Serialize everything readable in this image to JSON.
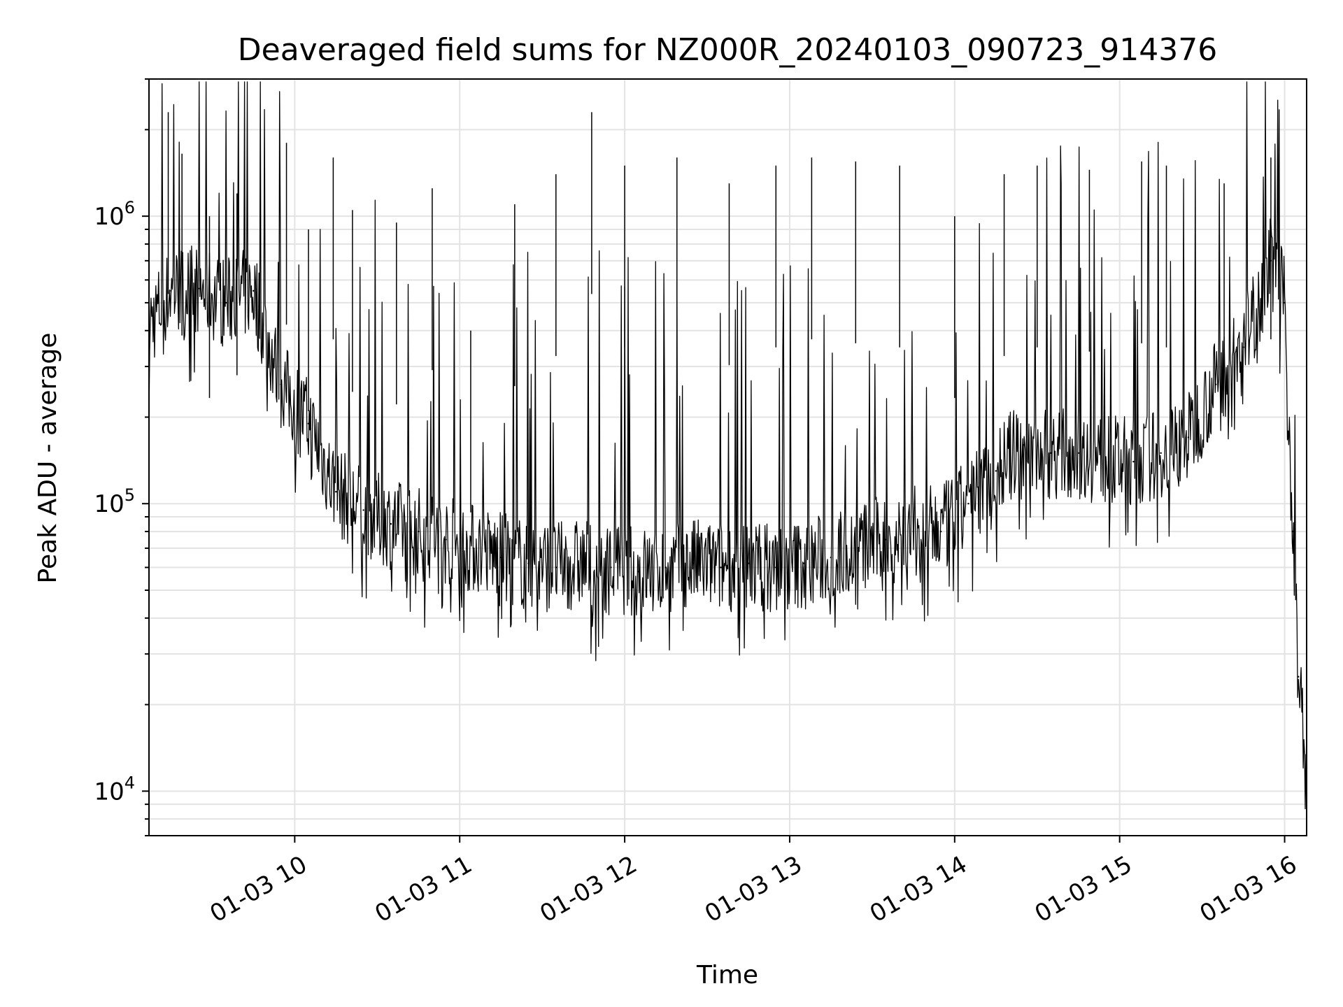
{
  "chart_data": {
    "type": "line",
    "title": "Deaveraged field sums for NZ000R_20240103_090723_914376",
    "xlabel": "Time",
    "ylabel": "Peak ADU - average",
    "yscale": "log",
    "xlim": [
      "01-03 09:07",
      "01-03 16:08"
    ],
    "ylim": [
      7000,
      3000000
    ],
    "grid": true,
    "x_ticks": [
      "01-03 10",
      "01-03 11",
      "01-03 12",
      "01-03 13",
      "01-03 14",
      "01-03 15",
      "01-03 16"
    ],
    "y_ticks": [
      {
        "base": "10",
        "exp": "4",
        "value": 10000
      },
      {
        "base": "10",
        "exp": "5",
        "value": 100000
      },
      {
        "base": "10",
        "exp": "6",
        "value": 1000000
      }
    ],
    "series": [
      {
        "color": "#000000",
        "x": [
          "01-03 09:07",
          "01-03 09:15",
          "01-03 09:25",
          "01-03 09:35",
          "01-03 09:45",
          "01-03 09:55",
          "01-03 10:05",
          "01-03 10:15",
          "01-03 10:25",
          "01-03 10:35",
          "01-03 10:45",
          "01-03 10:55",
          "01-03 11:05",
          "01-03 11:15",
          "01-03 11:25",
          "01-03 11:35",
          "01-03 11:45",
          "01-03 11:55",
          "01-03 12:05",
          "01-03 12:15",
          "01-03 12:25",
          "01-03 12:35",
          "01-03 12:45",
          "01-03 12:55",
          "01-03 13:05",
          "01-03 13:15",
          "01-03 13:25",
          "01-03 13:35",
          "01-03 13:45",
          "01-03 13:55",
          "01-03 14:05",
          "01-03 14:15",
          "01-03 14:25",
          "01-03 14:35",
          "01-03 14:45",
          "01-03 14:55",
          "01-03 15:05",
          "01-03 15:15",
          "01-03 15:25",
          "01-03 15:35",
          "01-03 15:45",
          "01-03 15:55",
          "01-03 16:00",
          "01-03 16:03",
          "01-03 16:05",
          "01-03 16:08"
        ],
        "y": [
          420000,
          550000,
          560000,
          500000,
          550000,
          260000,
          190000,
          110000,
          95000,
          85000,
          80000,
          75000,
          70000,
          65000,
          62000,
          60000,
          62000,
          60000,
          58000,
          60000,
          62000,
          60000,
          62000,
          60000,
          62000,
          65000,
          70000,
          75000,
          80000,
          80000,
          100000,
          130000,
          160000,
          150000,
          150000,
          140000,
          140000,
          150000,
          170000,
          260000,
          350000,
          700000,
          500000,
          80000,
          25000,
          12000
        ]
      }
    ],
    "spikes": [
      {
        "x": "01-03 09:14",
        "y": 2300000
      },
      {
        "x": "01-03 09:19",
        "y": 1650000
      },
      {
        "x": "01-03 09:29",
        "y": 1000000
      },
      {
        "x": "01-03 09:39",
        "y": 1200000
      },
      {
        "x": "01-03 09:57",
        "y": 1800000
      },
      {
        "x": "01-03 10:05",
        "y": 900000
      },
      {
        "x": "01-03 10:14",
        "y": 1600000
      },
      {
        "x": "01-03 10:21",
        "y": 1050000
      },
      {
        "x": "01-03 10:37",
        "y": 950000
      },
      {
        "x": "01-03 10:50",
        "y": 1250000
      },
      {
        "x": "01-03 11:04",
        "y": 400000
      },
      {
        "x": "01-03 11:20",
        "y": 1100000
      },
      {
        "x": "01-03 11:35",
        "y": 1400000
      },
      {
        "x": "01-03 11:48",
        "y": 2300000
      },
      {
        "x": "01-03 12:00",
        "y": 1500000
      },
      {
        "x": "01-03 12:19",
        "y": 1600000
      },
      {
        "x": "01-03 12:38",
        "y": 1300000
      },
      {
        "x": "01-03 12:55",
        "y": 1500000
      },
      {
        "x": "01-03 13:08",
        "y": 1600000
      },
      {
        "x": "01-03 13:24",
        "y": 1550000
      },
      {
        "x": "01-03 13:40",
        "y": 1500000
      },
      {
        "x": "01-03 14:00",
        "y": 1000000
      },
      {
        "x": "01-03 14:18",
        "y": 1400000
      },
      {
        "x": "01-03 14:30",
        "y": 1500000
      },
      {
        "x": "01-03 14:49",
        "y": 1450000
      },
      {
        "x": "01-03 15:08",
        "y": 1550000
      },
      {
        "x": "01-03 15:17",
        "y": 1500000
      },
      {
        "x": "01-03 15:38",
        "y": 1300000
      },
      {
        "x": "01-03 15:55",
        "y": 1600000
      }
    ]
  }
}
